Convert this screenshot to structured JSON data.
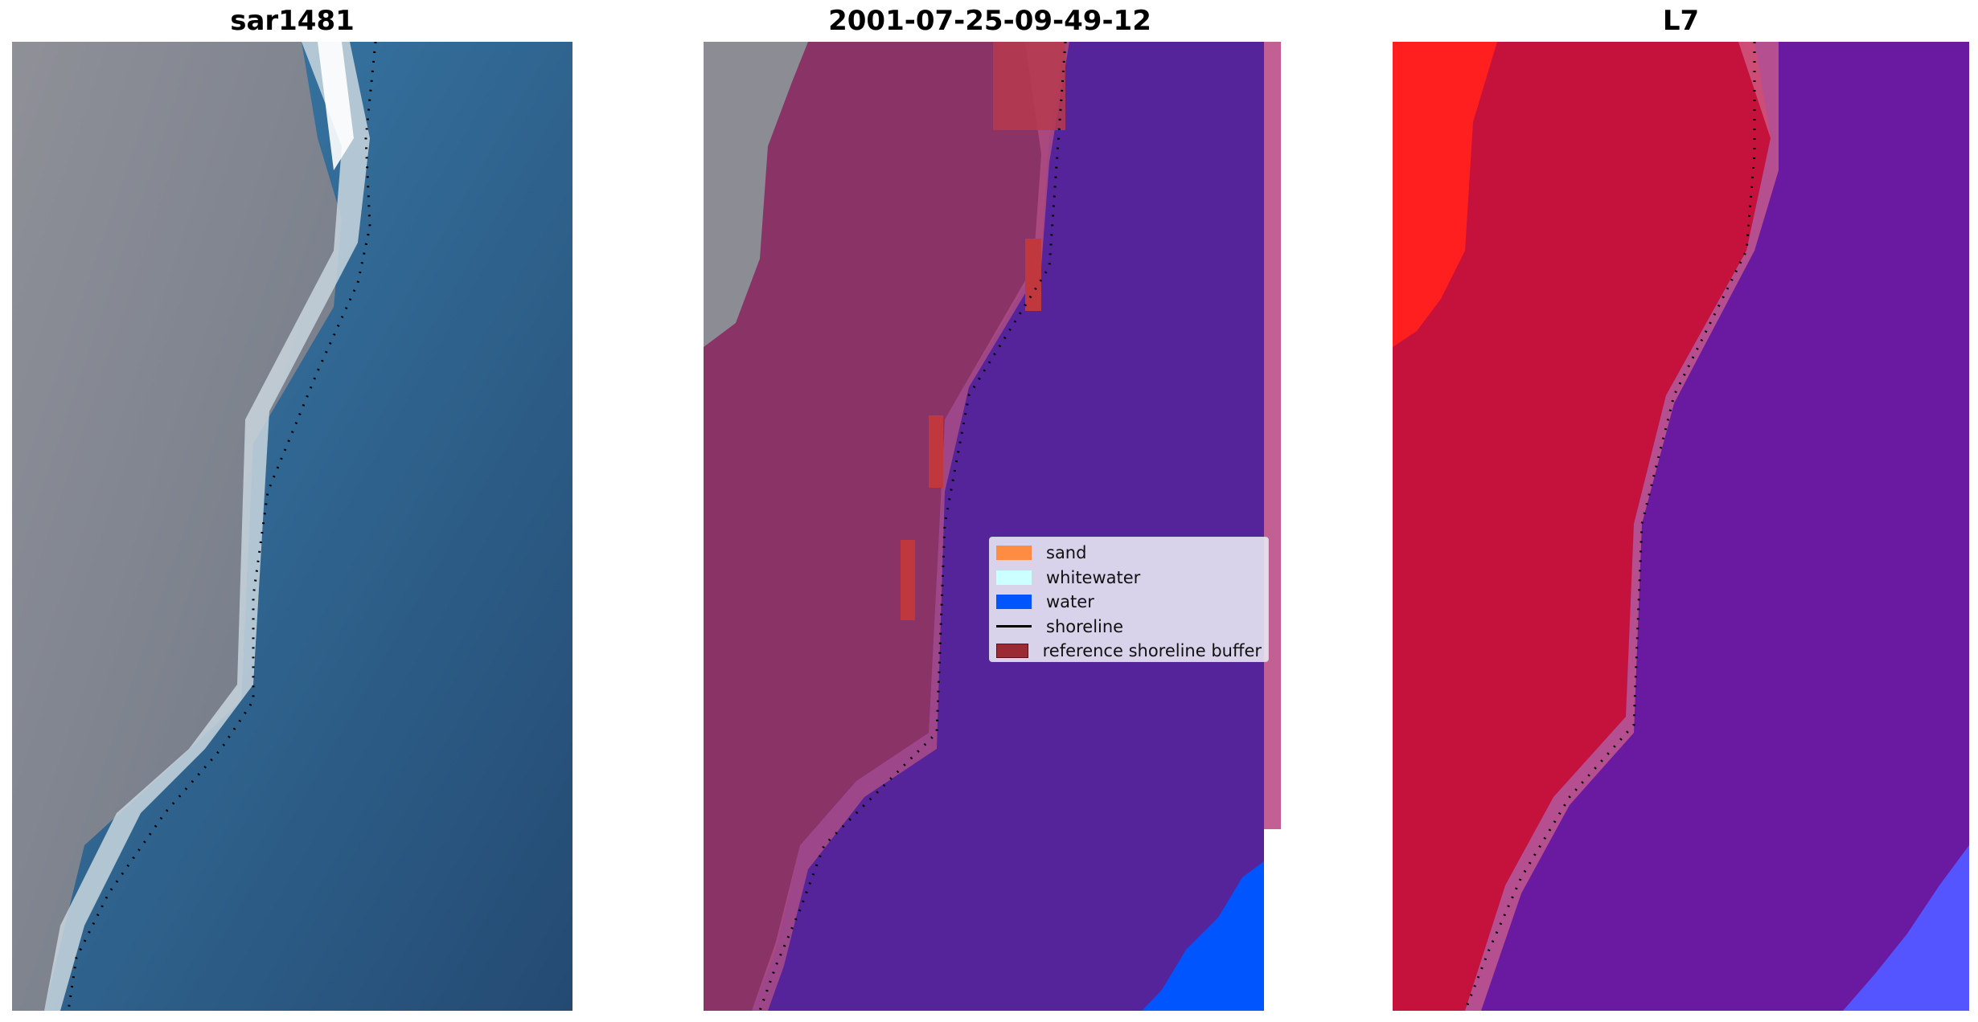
{
  "panels": [
    {
      "title": "sar1481",
      "kind": "rgb"
    },
    {
      "title": "2001-07-25-09-49-12",
      "kind": "classified"
    },
    {
      "title": "L7",
      "kind": "index"
    }
  ],
  "legend": {
    "items": [
      {
        "label": "sand",
        "type": "patch",
        "color": "#ff8c42"
      },
      {
        "label": "whitewater",
        "type": "patch",
        "color": "#ccffff"
      },
      {
        "label": "water",
        "type": "patch",
        "color": "#0055ff"
      },
      {
        "label": "shoreline",
        "type": "line",
        "color": "#000000"
      },
      {
        "label": "reference shoreline buffer",
        "type": "patch",
        "color": "#9b2a33"
      }
    ]
  },
  "colors": {
    "land_gray": "#8a8a92",
    "water_blue": "#2f6e9c",
    "class_land": "#8a3366",
    "class_water": "#55239a",
    "index_land": "#c4123c",
    "index_water": "#6a1aa0",
    "index_bright": "#ff1f1f",
    "index_blue": "#5555ff"
  }
}
